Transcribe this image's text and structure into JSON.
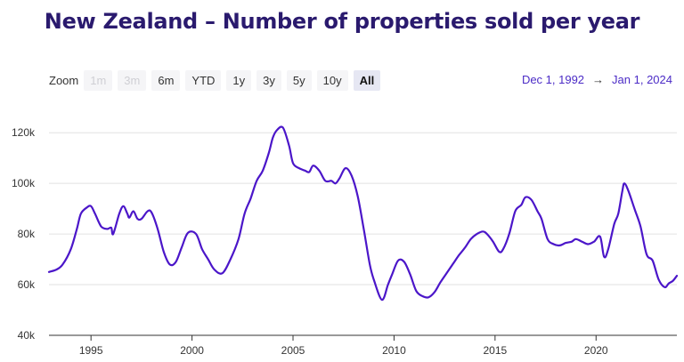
{
  "title": "New Zealand – Number of properties sold per year",
  "zoom": {
    "label": "Zoom",
    "buttons": [
      {
        "label": "1m",
        "state": "disabled"
      },
      {
        "label": "3m",
        "state": "disabled"
      },
      {
        "label": "6m",
        "state": "normal"
      },
      {
        "label": "YTD",
        "state": "normal"
      },
      {
        "label": "1y",
        "state": "normal"
      },
      {
        "label": "3y",
        "state": "normal"
      },
      {
        "label": "5y",
        "state": "normal"
      },
      {
        "label": "10y",
        "state": "normal"
      },
      {
        "label": "All",
        "state": "active"
      }
    ]
  },
  "range": {
    "from": "Dec 1, 1992",
    "arrow": "→",
    "to": "Jan 1, 2024"
  },
  "colors": {
    "line": "#4b16c9",
    "title": "#2a1a6e",
    "grid": "#e2e2e2",
    "range": "#4b2bc6"
  },
  "chart_data": {
    "type": "line",
    "title": "New Zealand – Number of properties sold per year",
    "xlabel": "",
    "ylabel": "",
    "xlim": [
      1992.92,
      2024.0
    ],
    "ylim": [
      40000,
      125000
    ],
    "yticks": [
      40000,
      60000,
      80000,
      100000,
      120000
    ],
    "ytick_labels": [
      "40k",
      "60k",
      "80k",
      "100k",
      "120k"
    ],
    "xticks": [
      1995,
      2000,
      2005,
      2010,
      2015,
      2020
    ],
    "xtick_labels": [
      "1995",
      "2000",
      "2005",
      "2010",
      "2015",
      "2020"
    ],
    "grid": "horizontal",
    "series": [
      {
        "x": [
          1992.92,
          1993.3,
          1993.6,
          1994.0,
          1994.3,
          1994.5,
          1994.8,
          1995.0,
          1995.2,
          1995.5,
          1995.8,
          1996.0,
          1996.1,
          1996.4,
          1996.6,
          1996.8,
          1996.9,
          1997.1,
          1997.3,
          1997.5,
          1997.8,
          1998.0,
          1998.3,
          1998.6,
          1998.9,
          1999.2,
          1999.5,
          1999.8,
          2000.2,
          2000.5,
          2000.8,
          2001.1,
          2001.5,
          2001.9,
          2002.3,
          2002.6,
          2002.9,
          2003.2,
          2003.5,
          2003.8,
          2004.0,
          2004.2,
          2004.5,
          2004.8,
          2005.0,
          2005.3,
          2005.6,
          2005.8,
          2006.0,
          2006.3,
          2006.6,
          2006.9,
          2007.1,
          2007.3,
          2007.6,
          2007.9,
          2008.2,
          2008.5,
          2008.8,
          2009.0,
          2009.4,
          2009.7,
          2009.9,
          2010.2,
          2010.5,
          2010.8,
          2011.1,
          2011.4,
          2011.7,
          2012.0,
          2012.3,
          2012.6,
          2012.9,
          2013.2,
          2013.5,
          2013.8,
          2014.1,
          2014.4,
          2014.6,
          2014.9,
          2015.2,
          2015.4,
          2015.7,
          2016.0,
          2016.3,
          2016.5,
          2016.8,
          2017.1,
          2017.3,
          2017.6,
          2017.9,
          2018.2,
          2018.5,
          2018.8,
          2019.0,
          2019.3,
          2019.6,
          2019.9,
          2020.2,
          2020.4,
          2020.6,
          2020.9,
          2021.1,
          2021.3,
          2021.4,
          2021.6,
          2021.9,
          2022.2,
          2022.5,
          2022.8,
          2023.1,
          2023.4,
          2023.6,
          2023.8,
          2024.0
        ],
        "y": [
          65000,
          66000,
          68000,
          74000,
          82000,
          88000,
          90500,
          91000,
          88000,
          83000,
          82000,
          82500,
          80000,
          88000,
          91000,
          88000,
          86500,
          89000,
          86000,
          86000,
          89000,
          88500,
          82000,
          73000,
          68000,
          69000,
          75000,
          80500,
          80000,
          74000,
          70000,
          66000,
          64500,
          70000,
          78000,
          88000,
          94000,
          101000,
          105000,
          112000,
          118000,
          121000,
          122000,
          115000,
          108000,
          106000,
          105000,
          104500,
          107000,
          105000,
          101000,
          101000,
          100000,
          102000,
          106000,
          103000,
          95000,
          82000,
          68000,
          62000,
          54000,
          60000,
          64000,
          69500,
          69000,
          64000,
          57500,
          55500,
          55000,
          57000,
          61000,
          64500,
          68000,
          71500,
          74500,
          78000,
          80000,
          81000,
          80000,
          77000,
          73000,
          74000,
          80000,
          89000,
          91500,
          94500,
          93500,
          89000,
          86000,
          78000,
          76000,
          75500,
          76500,
          77000,
          78000,
          77000,
          76000,
          77000,
          79000,
          71000,
          74000,
          84000,
          88000,
          97000,
          100000,
          97000,
          90000,
          83000,
          72000,
          69500,
          62000,
          59000,
          60500,
          61500,
          63500
        ]
      }
    ]
  }
}
